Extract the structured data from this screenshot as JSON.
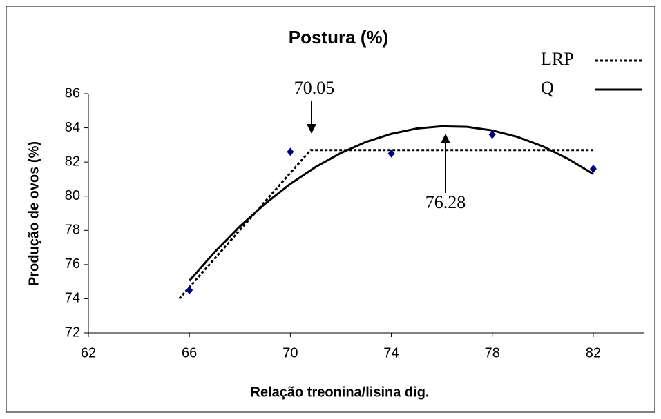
{
  "chart_data": {
    "type": "scatter",
    "title": "Postura (%)",
    "x_label": "Relação treonina/lisina dig.",
    "y_label": "Produção de ovos (%)",
    "annotations": [
      "70.05",
      "76.28"
    ],
    "xlim": [
      62,
      84
    ],
    "xticks": [
      62,
      66,
      70,
      74,
      78,
      82
    ],
    "ylim": [
      72,
      86
    ],
    "yticks": [
      72,
      74,
      76,
      78,
      80,
      82,
      84,
      86
    ],
    "points": {
      "color": "#000080",
      "x": [
        66,
        70,
        74,
        78,
        82
      ],
      "y": [
        74.5,
        82.6,
        82.5,
        83.6,
        81.6
      ]
    },
    "series": [
      {
        "name": "LRP",
        "color": "#000000",
        "style": "dotted",
        "x": [
          65.6,
          70.8,
          82
        ],
        "values": [
          74,
          82.7,
          82.7
        ]
      },
      {
        "name": "Q",
        "color": "#000000",
        "style": "solid",
        "x": [
          66,
          67,
          68,
          69,
          70,
          71,
          72,
          73,
          74,
          75,
          76,
          77,
          78,
          79,
          80,
          81,
          82
        ],
        "values": [
          75.05,
          76.73,
          78.23,
          79.56,
          80.72,
          81.71,
          82.53,
          83.18,
          83.65,
          83.96,
          84.09,
          84.06,
          83.85,
          83.47,
          82.92,
          82.19,
          81.3
        ]
      }
    ]
  }
}
